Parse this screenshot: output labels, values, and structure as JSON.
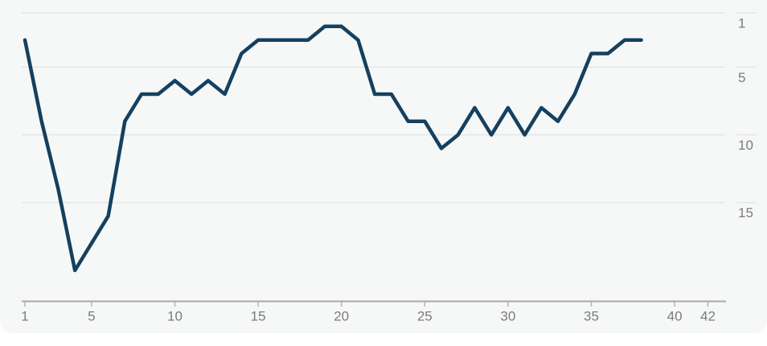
{
  "chart_data": {
    "type": "line",
    "title": "",
    "xlabel": "",
    "ylabel": "",
    "x": [
      1,
      2,
      3,
      4,
      5,
      6,
      7,
      8,
      9,
      10,
      11,
      12,
      13,
      14,
      15,
      16,
      17,
      18,
      19,
      20,
      21,
      22,
      23,
      24,
      25,
      26,
      27,
      28,
      29,
      30,
      31,
      32,
      33,
      34,
      35,
      36,
      37,
      38
    ],
    "values": [
      3,
      9,
      14,
      20,
      18,
      16,
      9,
      7,
      7,
      6,
      7,
      6,
      7,
      4,
      3,
      3,
      3,
      3,
      2,
      2,
      3,
      7,
      7,
      9,
      9,
      11,
      10,
      8,
      10,
      8,
      10,
      8,
      9,
      7,
      4,
      4,
      3,
      3
    ],
    "x_tick_labels": [
      "1",
      "5",
      "10",
      "15",
      "20",
      "25",
      "30",
      "35",
      "40",
      "42"
    ],
    "x_tick_values": [
      1,
      5,
      10,
      15,
      20,
      25,
      30,
      35,
      40,
      42
    ],
    "y_tick_labels": [
      "1",
      "5",
      "10",
      "15"
    ],
    "y_tick_values": [
      1,
      5,
      10,
      15
    ],
    "y_axis_side": "right",
    "y_inverted": true,
    "xlim": [
      1,
      43
    ],
    "ylim": [
      1,
      22
    ],
    "grid": "horizontal",
    "legend": "none"
  },
  "colors": {
    "card_background": "#f6f8f7",
    "page_background": "#ffffff",
    "line": "#15405f",
    "gridline": "#e6e7e5",
    "axis_line": "#a9a9a9",
    "tick_mark": "#b3b3b3",
    "tick_label": "#7b7b7b"
  }
}
